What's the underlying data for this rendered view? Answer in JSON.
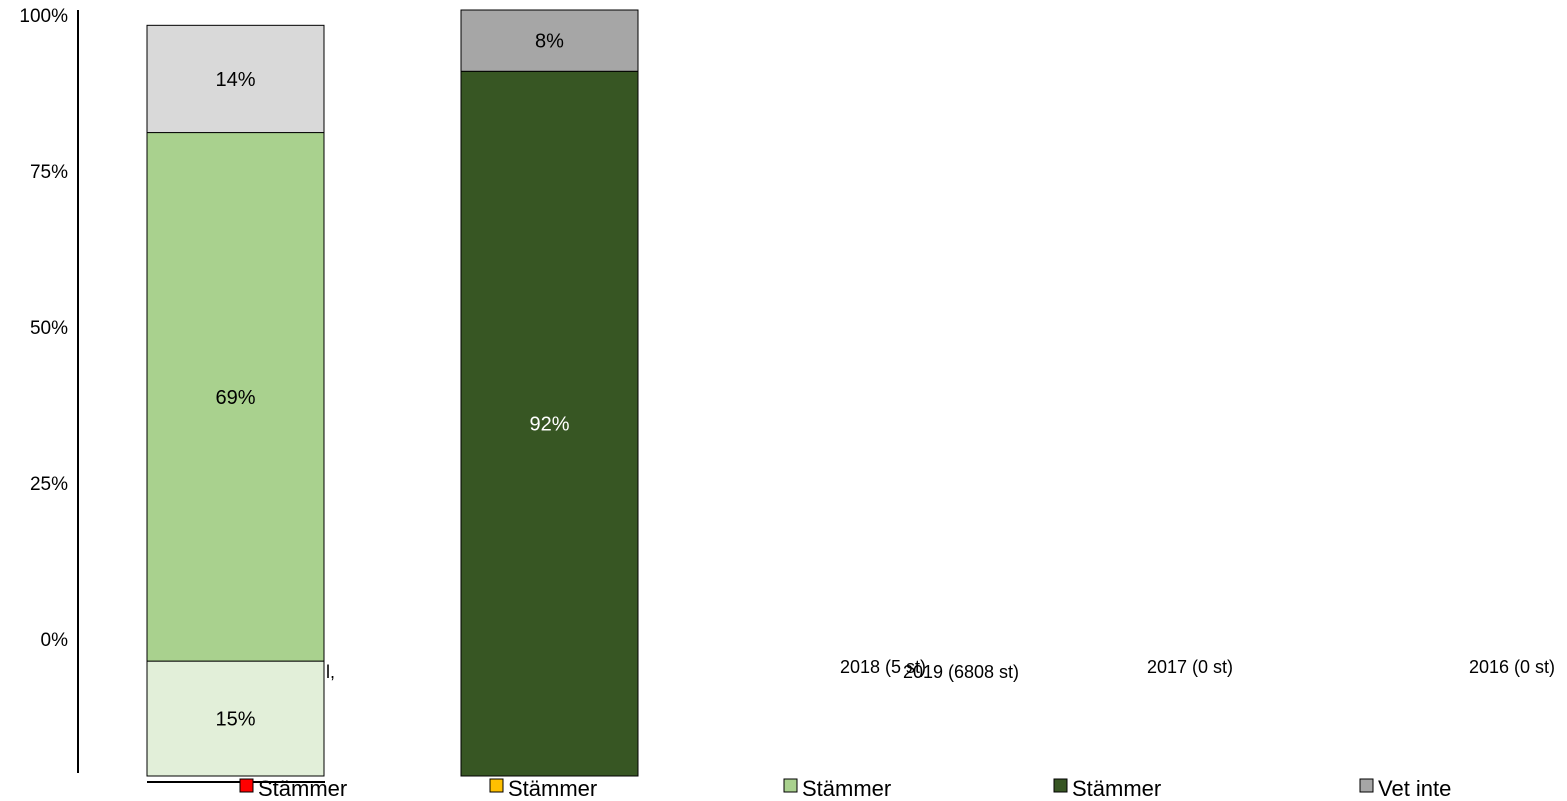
{
  "chart_data": {
    "type": "bar",
    "stacked": true,
    "percent": true,
    "ylim": [
      0,
      100
    ],
    "ticks": [
      "0%",
      "25%",
      "50%",
      "75%",
      "100%"
    ],
    "categories": [
      "2019 (6808 st)",
      "2018 (5 st)",
      "2017 (0 st)",
      "2016 (0 st)"
    ],
    "partial_label": "l,",
    "series": [
      {
        "name": "Stämmer",
        "color": "#ff0000",
        "values": [
          0,
          0,
          0,
          0
        ],
        "labels": [
          "",
          "",
          "",
          ""
        ]
      },
      {
        "name": "Stämmer",
        "color": "#ffc000",
        "values": [
          0,
          0,
          0,
          0
        ],
        "labels": [
          "",
          "",
          "",
          ""
        ]
      },
      {
        "name": "Stämmer",
        "color": "#e2efd9",
        "values": [
          15,
          0,
          0,
          0
        ],
        "labels": [
          "15%",
          "",
          "",
          ""
        ]
      },
      {
        "name": "Stämmer",
        "color": "#a9d18e",
        "values": [
          69,
          0,
          0,
          0
        ],
        "labels": [
          "69%",
          "",
          "",
          ""
        ]
      },
      {
        "name": "Stämmer",
        "color": "#375623",
        "values": [
          0,
          92,
          0,
          0
        ],
        "labels": [
          "",
          "92%",
          "",
          ""
        ]
      },
      {
        "name": "Vet inte",
        "color": "#a6a6a6",
        "values": [
          0,
          8,
          0,
          0
        ],
        "labels": [
          "",
          "8%",
          "",
          ""
        ]
      },
      {
        "name": "",
        "color": "#d9d9d9",
        "values": [
          14,
          0,
          0,
          0
        ],
        "labels": [
          "14%",
          "",
          "",
          ""
        ]
      }
    ],
    "legend": [
      {
        "label": "Stämmer",
        "color": "#ff0000"
      },
      {
        "label": "Stämmer",
        "color": "#ffc000"
      },
      {
        "label": "Stämmer",
        "color": "#a9d18e"
      },
      {
        "label": "Stämmer",
        "color": "#375623"
      },
      {
        "label": "Vet inte",
        "color": "#a6a6a6"
      }
    ],
    "legend_position": "bottom"
  }
}
